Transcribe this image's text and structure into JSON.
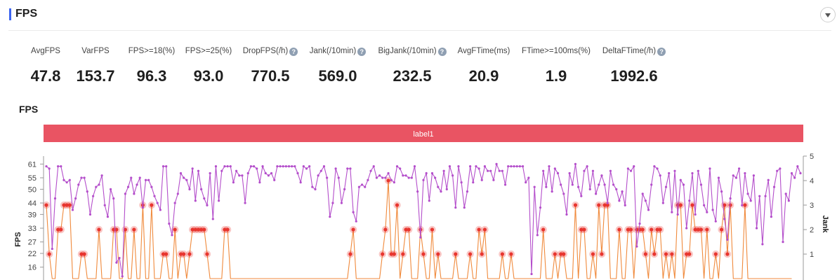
{
  "header": {
    "title": "FPS"
  },
  "metrics": [
    {
      "label": "AvgFPS",
      "value": "47.8",
      "help": false
    },
    {
      "label": "VarFPS",
      "value": "153.7",
      "help": false
    },
    {
      "label": "FPS>=18(%)",
      "value": "96.3",
      "help": false
    },
    {
      "label": "FPS>=25(%)",
      "value": "93.0",
      "help": false
    },
    {
      "label": "DropFPS(/h)",
      "value": "770.5",
      "help": true
    },
    {
      "label": "Jank(/10min)",
      "value": "569.0",
      "help": true
    },
    {
      "label": "BigJank(/10min)",
      "value": "232.5",
      "help": true
    },
    {
      "label": "AvgFTime(ms)",
      "value": "20.9",
      "help": false
    },
    {
      "label": "FTime>=100ms(%)",
      "value": "1.9",
      "help": false
    },
    {
      "label": "DeltaFTime(/h)",
      "value": "1992.6",
      "help": true
    }
  ],
  "chart_data": {
    "type": "line",
    "title": "FPS",
    "band_label": "label1",
    "ylabel_left": "FPS",
    "ylabel_right": "Jank",
    "y_left_ticks": [
      "61",
      "55",
      "50",
      "44",
      "39",
      "33",
      "27",
      "22",
      "16"
    ],
    "y_right_ticks": [
      "5",
      "4",
      "3",
      "2",
      "1"
    ],
    "y_left_range": [
      11,
      66
    ],
    "y_right_range": [
      0,
      5
    ],
    "colors": {
      "fps": "#b44ecb",
      "jank": "#f08a3c",
      "jank_marker": "#e8352f",
      "band": "#e95463"
    },
    "series": [
      {
        "axis": "left",
        "values": [
          60,
          59,
          24,
          46,
          60,
          60,
          54,
          53,
          54,
          41,
          46,
          52,
          55,
          55,
          49,
          39,
          47,
          51,
          52,
          56,
          43,
          38,
          50,
          46,
          18,
          20,
          12,
          48,
          51,
          55,
          48,
          52,
          55,
          42,
          54,
          54,
          51,
          47,
          44,
          41,
          60,
          60,
          35,
          30,
          44,
          48,
          57,
          55,
          54,
          50,
          59,
          45,
          58,
          50,
          46,
          43,
          57,
          37,
          60,
          45,
          58,
          60,
          60,
          60,
          53,
          58,
          56,
          56,
          44,
          57,
          60,
          60,
          59,
          53,
          60,
          57,
          56,
          57,
          54,
          60,
          60,
          60,
          60,
          60,
          60,
          60,
          57,
          53,
          60,
          59,
          60,
          51,
          50,
          56,
          58,
          60,
          55,
          38,
          44,
          59,
          55,
          44,
          50,
          59,
          59,
          40,
          36,
          51,
          52,
          51,
          54,
          58,
          60,
          55,
          56,
          55,
          55,
          57,
          54,
          53,
          60,
          59,
          56,
          56,
          55,
          55,
          60,
          49,
          29,
          54,
          57,
          45,
          57,
          55,
          51,
          49,
          58,
          50,
          60,
          56,
          42,
          60,
          53,
          42,
          49,
          60,
          53,
          60,
          59,
          54,
          60,
          58,
          58,
          54,
          61,
          58,
          58,
          52,
          60,
          60,
          60,
          60,
          60,
          60,
          53,
          55,
          13,
          51,
          30,
          42,
          58,
          51,
          60,
          49,
          59,
          57,
          52,
          48,
          39,
          57,
          52,
          61,
          51,
          47,
          58,
          60,
          50,
          58,
          48,
          52,
          56,
          52,
          44,
          58,
          52,
          50,
          45,
          49,
          43,
          59,
          58,
          60,
          25,
          35,
          48,
          45,
          41,
          52,
          60,
          59,
          56,
          44,
          51,
          57,
          40,
          58,
          39,
          54,
          52,
          33,
          45,
          57,
          39,
          58,
          52,
          43,
          40,
          59,
          41,
          36,
          55,
          49,
          37,
          28,
          46,
          56,
          55,
          59,
          43,
          57,
          48,
          45,
          56,
          33,
          47,
          26,
          47,
          54,
          38,
          51,
          58,
          59,
          27,
          48,
          45,
          57,
          55,
          60,
          57
        ]
      },
      {
        "axis": "right",
        "values": [
          3,
          1,
          0,
          0,
          2,
          2,
          3,
          3,
          3,
          0,
          0,
          0,
          1,
          1,
          0,
          0,
          0,
          0,
          2,
          0,
          0,
          0,
          0,
          2,
          2,
          0,
          0,
          2,
          0,
          0,
          2,
          0,
          0,
          3,
          0,
          0,
          3,
          0,
          0,
          0,
          1,
          1,
          0,
          0,
          2,
          0,
          1,
          1,
          0,
          1,
          2,
          2,
          2,
          2,
          2,
          1,
          0,
          0,
          0,
          0,
          0,
          2,
          2,
          0,
          0,
          0,
          0,
          0,
          0,
          0,
          0,
          0,
          0,
          0,
          0,
          0,
          0,
          0,
          0,
          0,
          0,
          0,
          0,
          0,
          0,
          0,
          0,
          0,
          0,
          0,
          0,
          0,
          0,
          0,
          0,
          0,
          0,
          0,
          0,
          0,
          0,
          0,
          0,
          0,
          1,
          2,
          0,
          0,
          0,
          0,
          0,
          0,
          0,
          0,
          0,
          1,
          2,
          4,
          1,
          1,
          3,
          0,
          1,
          2,
          2,
          0,
          0,
          0,
          2,
          1,
          0,
          0,
          2,
          0,
          1,
          0,
          0,
          0,
          0,
          0,
          1,
          0,
          0,
          0,
          0,
          1,
          0,
          0,
          2,
          1,
          2,
          0,
          0,
          0,
          0,
          0,
          1,
          0,
          0,
          1,
          0,
          0,
          0,
          0,
          0,
          0,
          0,
          0,
          0,
          0,
          2,
          0,
          0,
          0,
          1,
          0,
          1,
          1,
          0,
          0,
          0,
          3,
          0,
          2,
          2,
          0,
          0,
          1,
          0,
          3,
          1,
          3,
          3,
          0,
          0,
          0,
          2,
          0,
          0,
          2,
          2,
          0,
          2,
          2,
          2,
          1,
          0,
          2,
          1,
          2,
          2,
          0,
          1,
          0,
          1,
          0,
          3,
          3,
          0,
          1,
          1,
          3,
          2,
          2,
          2,
          0,
          2,
          0,
          0,
          1,
          0,
          2,
          3,
          1,
          3,
          0,
          0,
          0,
          0,
          3,
          0,
          0,
          0,
          0,
          0,
          0,
          0,
          0,
          0,
          0,
          0,
          0,
          0,
          0,
          0,
          0
        ]
      }
    ]
  }
}
